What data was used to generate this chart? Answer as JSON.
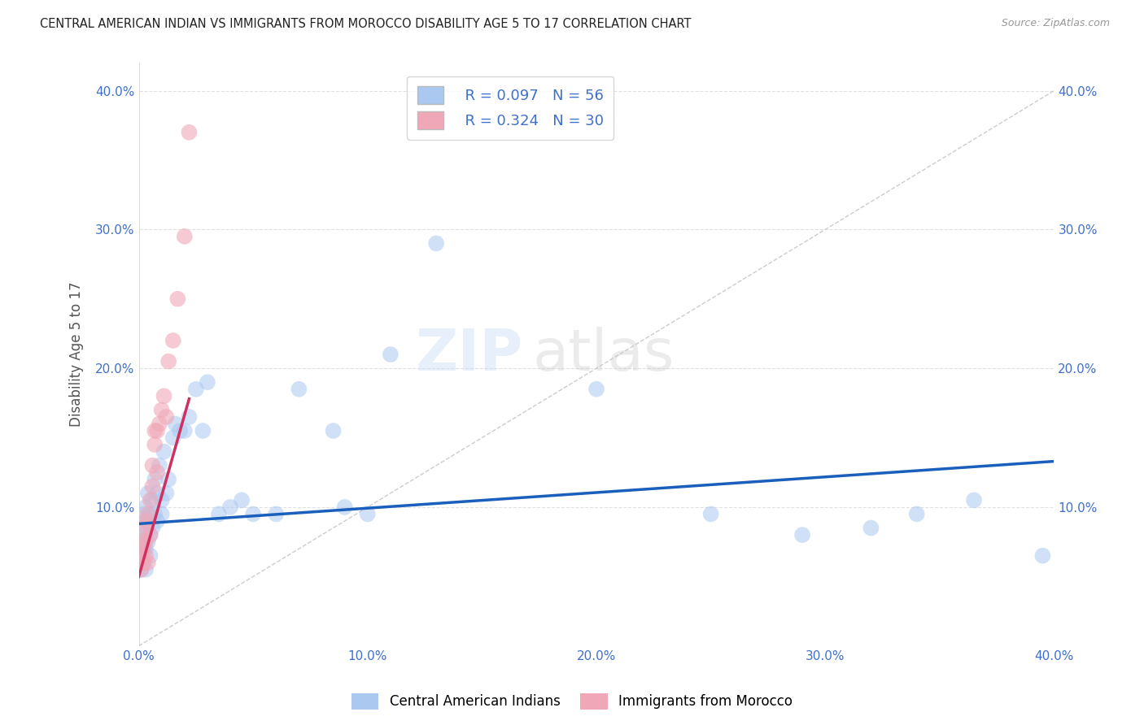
{
  "title": "CENTRAL AMERICAN INDIAN VS IMMIGRANTS FROM MOROCCO DISABILITY AGE 5 TO 17 CORRELATION CHART",
  "source": "Source: ZipAtlas.com",
  "ylabel": "Disability Age 5 to 17",
  "xlim": [
    0.0,
    0.4
  ],
  "ylim": [
    0.0,
    0.42
  ],
  "xticks": [
    0.0,
    0.1,
    0.2,
    0.3,
    0.4
  ],
  "yticks": [
    0.1,
    0.2,
    0.3,
    0.4
  ],
  "xtick_labels": [
    "0.0%",
    "10.0%",
    "20.0%",
    "30.0%",
    "40.0%"
  ],
  "ytick_labels": [
    "10.0%",
    "20.0%",
    "30.0%",
    "40.0%"
  ],
  "color_blue": "#aac8f0",
  "color_pink": "#f0a8b8",
  "color_trend_blue": "#1a5fbb",
  "color_trend_pink": "#d03060",
  "color_text_blue": "#4070cc",
  "legend_label1": "Central American Indians",
  "legend_label2": "Immigrants from Morocco",
  "legend_r1": "R = 0.097",
  "legend_n1": "N = 56",
  "legend_r2": "R = 0.324",
  "legend_n2": "N = 30",
  "blue_x": [
    0.001,
    0.001,
    0.001,
    0.001,
    0.002,
    0.002,
    0.002,
    0.002,
    0.003,
    0.003,
    0.003,
    0.003,
    0.004,
    0.004,
    0.004,
    0.005,
    0.005,
    0.005,
    0.006,
    0.006,
    0.007,
    0.007,
    0.008,
    0.008,
    0.009,
    0.01,
    0.01,
    0.011,
    0.012,
    0.013,
    0.015,
    0.016,
    0.018,
    0.02,
    0.022,
    0.025,
    0.028,
    0.03,
    0.035,
    0.04,
    0.045,
    0.05,
    0.06,
    0.07,
    0.085,
    0.09,
    0.1,
    0.11,
    0.13,
    0.2,
    0.25,
    0.29,
    0.32,
    0.34,
    0.365,
    0.395
  ],
  "blue_y": [
    0.055,
    0.065,
    0.075,
    0.08,
    0.06,
    0.07,
    0.08,
    0.095,
    0.055,
    0.07,
    0.09,
    0.1,
    0.075,
    0.09,
    0.11,
    0.065,
    0.08,
    0.095,
    0.085,
    0.105,
    0.095,
    0.12,
    0.09,
    0.11,
    0.13,
    0.095,
    0.105,
    0.14,
    0.11,
    0.12,
    0.15,
    0.16,
    0.155,
    0.155,
    0.165,
    0.185,
    0.155,
    0.19,
    0.095,
    0.1,
    0.105,
    0.095,
    0.095,
    0.185,
    0.155,
    0.1,
    0.095,
    0.21,
    0.29,
    0.185,
    0.095,
    0.08,
    0.085,
    0.095,
    0.105,
    0.065
  ],
  "pink_x": [
    0.001,
    0.001,
    0.001,
    0.001,
    0.002,
    0.002,
    0.002,
    0.002,
    0.003,
    0.003,
    0.003,
    0.004,
    0.004,
    0.005,
    0.005,
    0.006,
    0.006,
    0.007,
    0.007,
    0.008,
    0.008,
    0.009,
    0.01,
    0.011,
    0.012,
    0.013,
    0.015,
    0.017,
    0.02,
    0.022
  ],
  "pink_y": [
    0.055,
    0.06,
    0.065,
    0.07,
    0.06,
    0.07,
    0.075,
    0.085,
    0.065,
    0.075,
    0.09,
    0.06,
    0.095,
    0.08,
    0.105,
    0.115,
    0.13,
    0.145,
    0.155,
    0.125,
    0.155,
    0.16,
    0.17,
    0.18,
    0.165,
    0.205,
    0.22,
    0.25,
    0.295,
    0.37
  ],
  "trend_blue_x0": 0.0,
  "trend_blue_x1": 0.4,
  "trend_blue_y0": 0.088,
  "trend_blue_y1": 0.133,
  "trend_pink_x0": 0.0,
  "trend_pink_x1": 0.022,
  "trend_pink_y0": 0.05,
  "trend_pink_y1": 0.178
}
